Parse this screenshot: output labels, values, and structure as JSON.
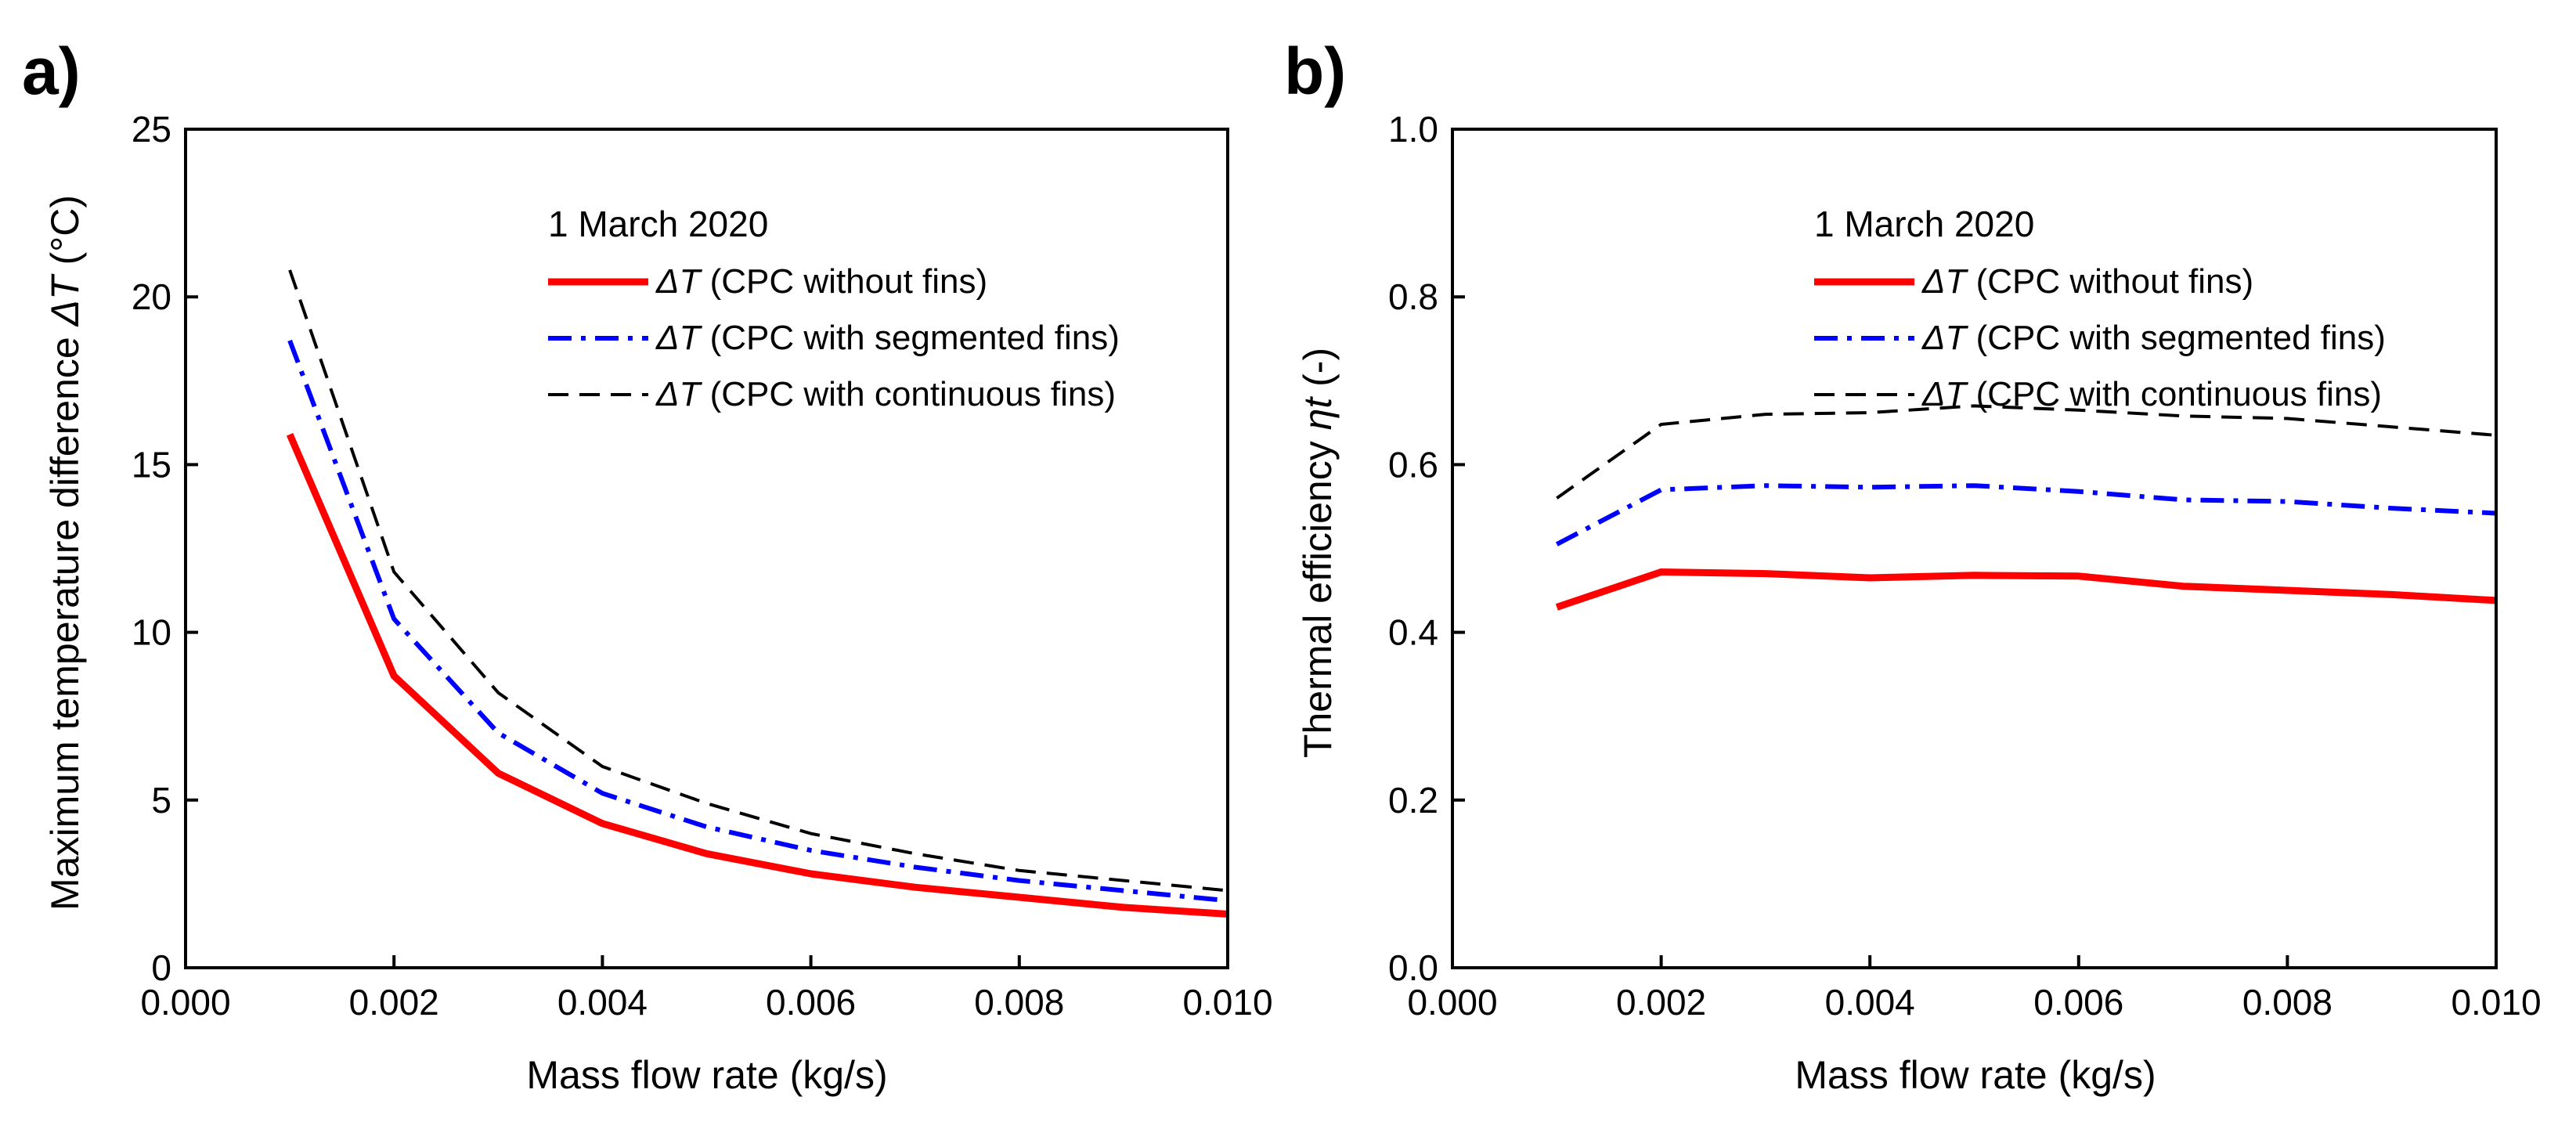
{
  "chart_data": [
    {
      "type": "line",
      "panel_label": "a)",
      "legend_title": "1 March 2020",
      "xlabel": "Mass flow rate (kg/s)",
      "ylabel_prefix": "Maximum temperature difference ",
      "ylabel_symbol": "ΔT",
      "ylabel_suffix": " (°C)",
      "xlim": [
        0.0,
        0.01
      ],
      "ylim": [
        0,
        25
      ],
      "xticks": [
        "0.000",
        "0.002",
        "0.004",
        "0.006",
        "0.008",
        "0.010"
      ],
      "yticks": [
        "0",
        "5",
        "10",
        "15",
        "20",
        "25"
      ],
      "legend_position": "top-right",
      "grid": false,
      "x": [
        0.001,
        0.002,
        0.003,
        0.004,
        0.005,
        0.006,
        0.007,
        0.008,
        0.009,
        0.01
      ],
      "series": [
        {
          "name_symbol": "ΔT",
          "name_rest": " (CPC without fins)",
          "color": "#ff0000",
          "style": "solid",
          "values": [
            15.9,
            8.7,
            5.8,
            4.3,
            3.4,
            2.8,
            2.4,
            2.1,
            1.8,
            1.6
          ]
        },
        {
          "name_symbol": "ΔT",
          "name_rest": " (CPC with segmented fins)",
          "color": "#0000ff",
          "style": "dashdot",
          "values": [
            18.7,
            10.4,
            7.0,
            5.2,
            4.2,
            3.5,
            3.0,
            2.6,
            2.3,
            2.0
          ]
        },
        {
          "name_symbol": "ΔT",
          "name_rest": " (CPC with continuous fins)",
          "color": "#000000",
          "style": "dashed",
          "values": [
            20.8,
            11.8,
            8.2,
            6.0,
            4.9,
            4.0,
            3.4,
            2.9,
            2.6,
            2.3
          ]
        }
      ]
    },
    {
      "type": "line",
      "panel_label": "b)",
      "legend_title": "1 March 2020",
      "xlabel": "Mass flow rate (kg/s)",
      "ylabel_prefix": "Thermal efficiency ",
      "ylabel_symbol": "ηt",
      "ylabel_suffix": " (-)",
      "xlim": [
        0.0,
        0.01
      ],
      "ylim": [
        0.0,
        1.0
      ],
      "xticks": [
        "0.000",
        "0.002",
        "0.004",
        "0.006",
        "0.008",
        "0.010"
      ],
      "yticks": [
        "0.0",
        "0.2",
        "0.4",
        "0.6",
        "0.8",
        "1.0"
      ],
      "legend_position": "top-right",
      "grid": false,
      "x": [
        0.001,
        0.002,
        0.003,
        0.004,
        0.005,
        0.006,
        0.007,
        0.008,
        0.009,
        0.01
      ],
      "series": [
        {
          "name_symbol": "ΔT",
          "name_rest": " (CPC without fins)",
          "color": "#ff0000",
          "style": "solid",
          "values": [
            0.43,
            0.472,
            0.47,
            0.465,
            0.468,
            0.467,
            0.455,
            0.45,
            0.445,
            0.438
          ]
        },
        {
          "name_symbol": "ΔT",
          "name_rest": " (CPC with segmented fins)",
          "color": "#0000ff",
          "style": "dashdot",
          "values": [
            0.505,
            0.57,
            0.575,
            0.573,
            0.575,
            0.568,
            0.558,
            0.556,
            0.548,
            0.542
          ]
        },
        {
          "name_symbol": "ΔT",
          "name_rest": " (CPC with continuous fins)",
          "color": "#000000",
          "style": "dashed",
          "values": [
            0.56,
            0.648,
            0.66,
            0.662,
            0.67,
            0.665,
            0.658,
            0.655,
            0.645,
            0.635
          ]
        }
      ]
    }
  ]
}
